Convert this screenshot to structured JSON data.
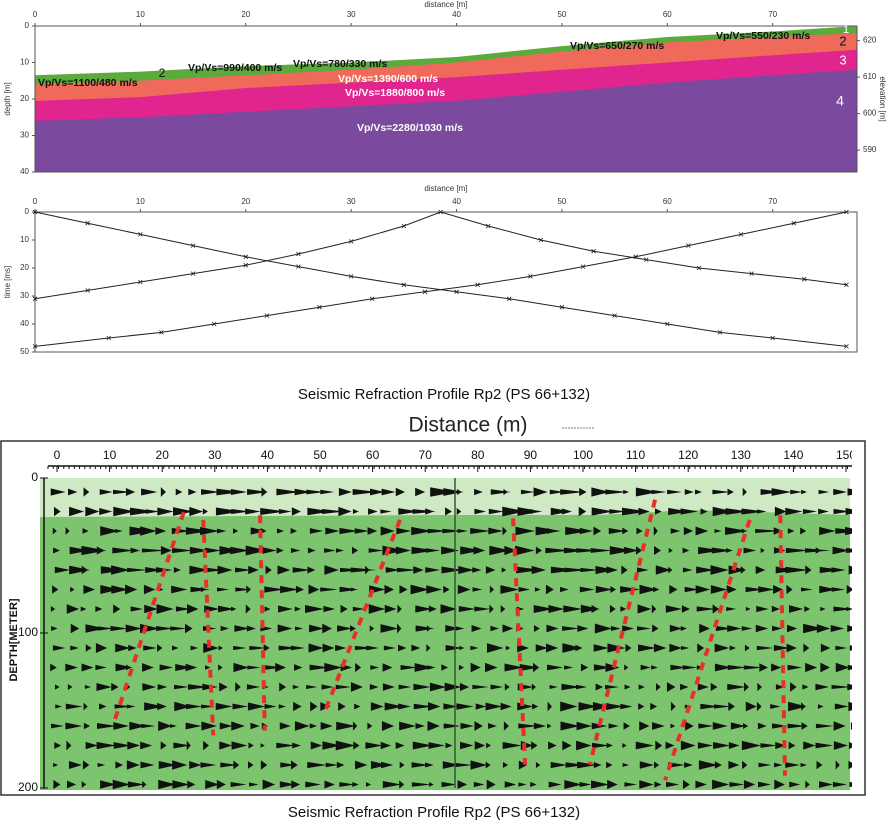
{
  "chart_data": [
    {
      "type": "layers",
      "x_label": "distance [m]",
      "y_label": "depth [m]",
      "y2_label": "elevation [m]",
      "xlim": [
        0,
        78
      ],
      "xticks": [
        0,
        10,
        20,
        30,
        40,
        50,
        60,
        70
      ],
      "ylim": [
        40,
        0
      ],
      "yticks": [
        0,
        10,
        20,
        30,
        40
      ],
      "y2lim": [
        584,
        624
      ],
      "y2ticks": [
        590,
        600,
        610,
        620
      ],
      "x": [
        0,
        10,
        20,
        30,
        40,
        50,
        60,
        70,
        78
      ],
      "layers": [
        {
          "name": "1",
          "color": "#5aaa3c",
          "top": [
            13.5,
            12.5,
            11,
            10,
            8.5,
            5.5,
            3,
            1.5,
            0
          ]
        },
        {
          "name": "2",
          "color": "#f06a5c",
          "top": [
            16,
            15,
            13.5,
            12,
            10,
            7,
            4.5,
            3,
            2
          ]
        },
        {
          "name": "3",
          "color": "#e0258e",
          "top": [
            20.5,
            19.5,
            17,
            15.5,
            14,
            12,
            10,
            8,
            6.5
          ]
        },
        {
          "name": "4",
          "color": "#7b4a9e",
          "top": [
            26,
            25,
            23.5,
            22,
            20.5,
            18,
            15.5,
            13.5,
            12
          ]
        }
      ],
      "velocity_labels": [
        "Vp/Vs=1100/480 m/s",
        "Vp/Vs=990/400 m/s",
        "Vp/Vs=780/330 m/s",
        "Vp/Vs=650/270 m/s",
        "Vp/Vs=550/230 m/s",
        "Vp/Vs=1390/600 m/s",
        "Vp/Vs=1880/800 m/s",
        "Vp/Vs=2280/1030 m/s"
      ]
    },
    {
      "type": "line",
      "x_label": "distance [m]",
      "y_label": "time [ms]",
      "xlim": [
        0,
        78
      ],
      "xticks": [
        0,
        10,
        20,
        30,
        40,
        50,
        60,
        70
      ],
      "ylim": [
        50,
        0
      ],
      "yticks": [
        0,
        10,
        20,
        30,
        40,
        50
      ],
      "series": [
        {
          "color": "#222222",
          "x": [
            0,
            5,
            10,
            15,
            20,
            25,
            30,
            35,
            40,
            45,
            50,
            55,
            60,
            65,
            70,
            77
          ],
          "values": [
            0,
            4,
            8,
            12,
            16,
            19.5,
            23,
            26,
            28.5,
            31,
            34,
            37,
            40,
            43,
            45,
            48
          ]
        },
        {
          "color": "#222222",
          "x": [
            0,
            7,
            12,
            17,
            22,
            27,
            32,
            37,
            42,
            47,
            52,
            57,
            62,
            67,
            72,
            77
          ],
          "values": [
            48,
            45,
            43,
            40,
            37,
            34,
            31,
            28.5,
            26,
            23,
            19.5,
            16,
            12,
            8,
            4,
            0
          ]
        },
        {
          "color": "#222222",
          "x": [
            0,
            5,
            10,
            15,
            20,
            25,
            30,
            35,
            38.5,
            43,
            48,
            53,
            58,
            63,
            68,
            73,
            77
          ],
          "values": [
            31,
            28,
            25,
            22,
            19,
            15,
            10.5,
            5,
            0,
            5,
            10,
            14,
            17,
            20,
            22,
            24,
            26
          ]
        }
      ],
      "caption": "Seismic Refraction Profile Rp2 (PS 66+132)"
    },
    {
      "type": "section",
      "title": "Distance (m)",
      "y_label": "DEPTH[METER]",
      "xlim": [
        0,
        150
      ],
      "xticks": [
        0,
        10,
        20,
        30,
        40,
        50,
        60,
        70,
        80,
        90,
        100,
        110,
        120,
        130,
        140,
        150
      ],
      "ylim": [
        200,
        0
      ],
      "yticks": [
        0,
        100,
        200
      ],
      "fill": "#7cc46e",
      "top_fill": "#cfe9c4",
      "line_color": "#e8302a",
      "lines": [
        {
          "x": [
            24.1,
            11
          ],
          "y": [
            22,
            156
          ]
        },
        {
          "x": [
            27.8,
            29.7
          ],
          "y": [
            27,
            166
          ]
        },
        {
          "x": [
            38.6,
            39.5
          ],
          "y": [
            24,
            163
          ]
        },
        {
          "x": [
            65.2,
            51
          ],
          "y": [
            27,
            150
          ]
        },
        {
          "x": [
            86.7,
            89
          ],
          "y": [
            26,
            185
          ]
        },
        {
          "x": [
            113.7,
            101.3
          ],
          "y": [
            14,
            185
          ]
        },
        {
          "x": [
            131.7,
            115.6
          ],
          "y": [
            27,
            195
          ]
        },
        {
          "x": [
            137.5,
            138.4
          ],
          "y": [
            24,
            192
          ]
        }
      ],
      "caption": "Seismic Refraction Profile Rp2 (PS 66+132)"
    }
  ]
}
